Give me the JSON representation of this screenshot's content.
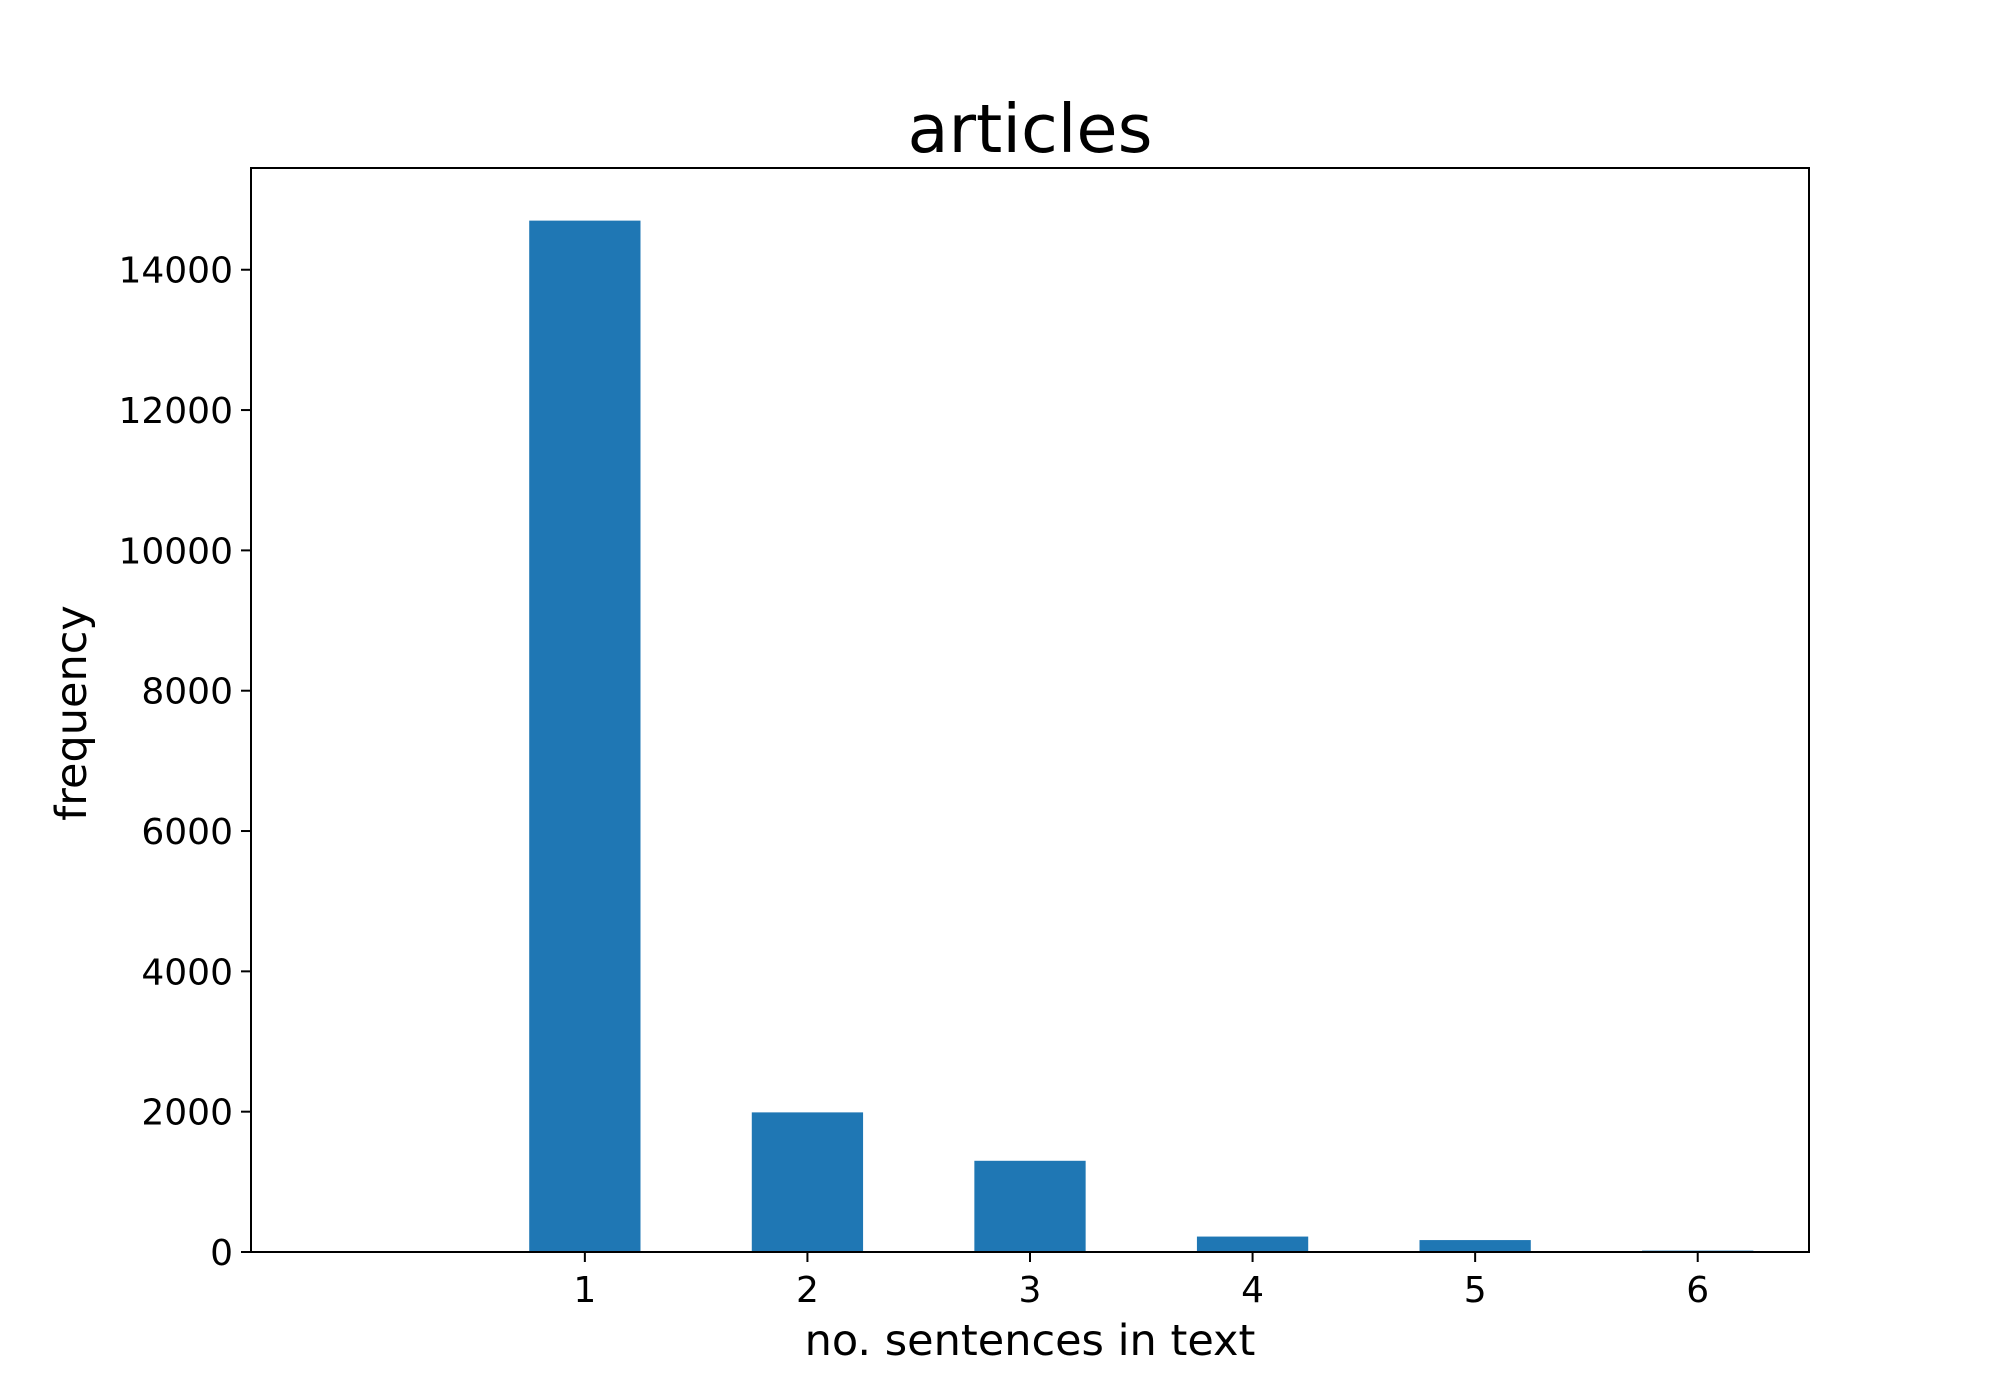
{
  "chart_data": {
    "type": "bar",
    "title": "articles",
    "xlabel": "no. sentences in text",
    "ylabel": "frequency",
    "categories": [
      "1",
      "2",
      "3",
      "4",
      "5",
      "6"
    ],
    "x": [
      1,
      2,
      3,
      4,
      5,
      6
    ],
    "values": [
      14700,
      1990,
      1300,
      220,
      170,
      20
    ],
    "xlim": [
      -0.5,
      6.5
    ],
    "ylim": [
      0,
      15450
    ],
    "yticks": [
      0,
      2000,
      4000,
      6000,
      8000,
      10000,
      12000,
      14000
    ],
    "ytick_labels": [
      "0",
      "2000",
      "4000",
      "6000",
      "8000",
      "10000",
      "12000",
      "14000"
    ],
    "bar_width": 0.5,
    "bar_color": "#1f77b4",
    "grid": false,
    "legend": false
  }
}
